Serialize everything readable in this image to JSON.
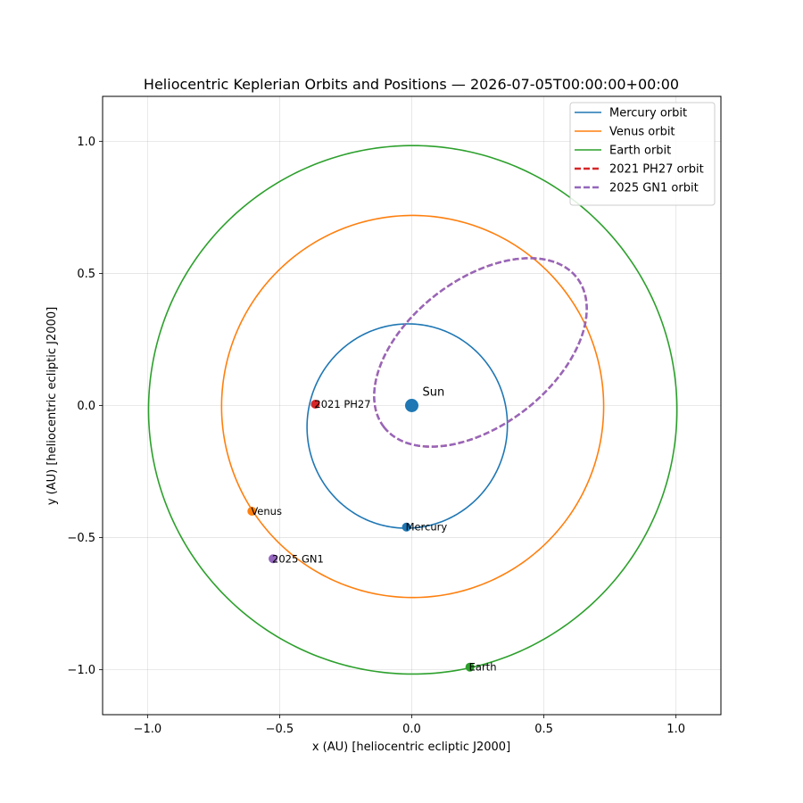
{
  "chart_data": {
    "type": "line",
    "title": "Heliocentric Keplerian Orbits and Positions — 2026-07-05T00:00:00+00:00",
    "xlabel": "x (AU)  [heliocentric ecliptic J2000]",
    "ylabel": "y (AU)  [heliocentric ecliptic J2000]",
    "xlim": [
      -1.17,
      1.17
    ],
    "ylim": [
      -1.17,
      1.17
    ],
    "xticks": [
      -1.0,
      -0.5,
      0.0,
      0.5,
      1.0
    ],
    "yticks": [
      -1.0,
      -0.5,
      0.0,
      0.5,
      1.0
    ],
    "xtick_labels": [
      "−1.0",
      "−0.5",
      "0.0",
      "0.5",
      "1.0"
    ],
    "ytick_labels": [
      "−1.0",
      "−0.5",
      "0.0",
      "0.5",
      "1.0"
    ],
    "grid": true,
    "legend_position": "top-right",
    "sun": {
      "label": "Sun",
      "x": 0.0,
      "y": 0.0,
      "color": "#1f77b4"
    },
    "series": [
      {
        "name": "Mercury orbit",
        "color": "#1f77b4",
        "dashed": false,
        "a": 0.387,
        "e": 0.2056,
        "omega_deg": 77.5
      },
      {
        "name": "Venus orbit",
        "color": "#ff7f0e",
        "dashed": false,
        "a": 0.723,
        "e": 0.0068,
        "omega_deg": 131.5
      },
      {
        "name": "Earth orbit",
        "color": "#2ca02c",
        "dashed": false,
        "a": 1.0,
        "e": 0.0167,
        "omega_deg": 102.9
      },
      {
        "name": "2021 PH27 orbit",
        "color": "#d62728",
        "dashed": true,
        "a": 0.4617,
        "e": 0.7116,
        "omega_deg": 217.7,
        "incl_deg": 31.9
      },
      {
        "name": "2025 GN1 orbit",
        "color": "#9467bd",
        "dashed": true,
        "a": 0.4617,
        "e": 0.7116,
        "omega_deg": 217.7,
        "incl_deg": 31.9
      }
    ],
    "points": [
      {
        "label": "Mercury",
        "x": -0.02,
        "y": -0.46,
        "color": "#1f77b4"
      },
      {
        "label": "Venus",
        "x": -0.605,
        "y": -0.4,
        "color": "#ff7f0e"
      },
      {
        "label": "Earth",
        "x": 0.22,
        "y": -0.99,
        "color": "#2ca02c"
      },
      {
        "label": "2021 PH27",
        "x": -0.365,
        "y": 0.005,
        "color": "#d62728"
      },
      {
        "label": "2025 GN1",
        "x": -0.525,
        "y": -0.58,
        "color": "#9467bd"
      }
    ]
  }
}
